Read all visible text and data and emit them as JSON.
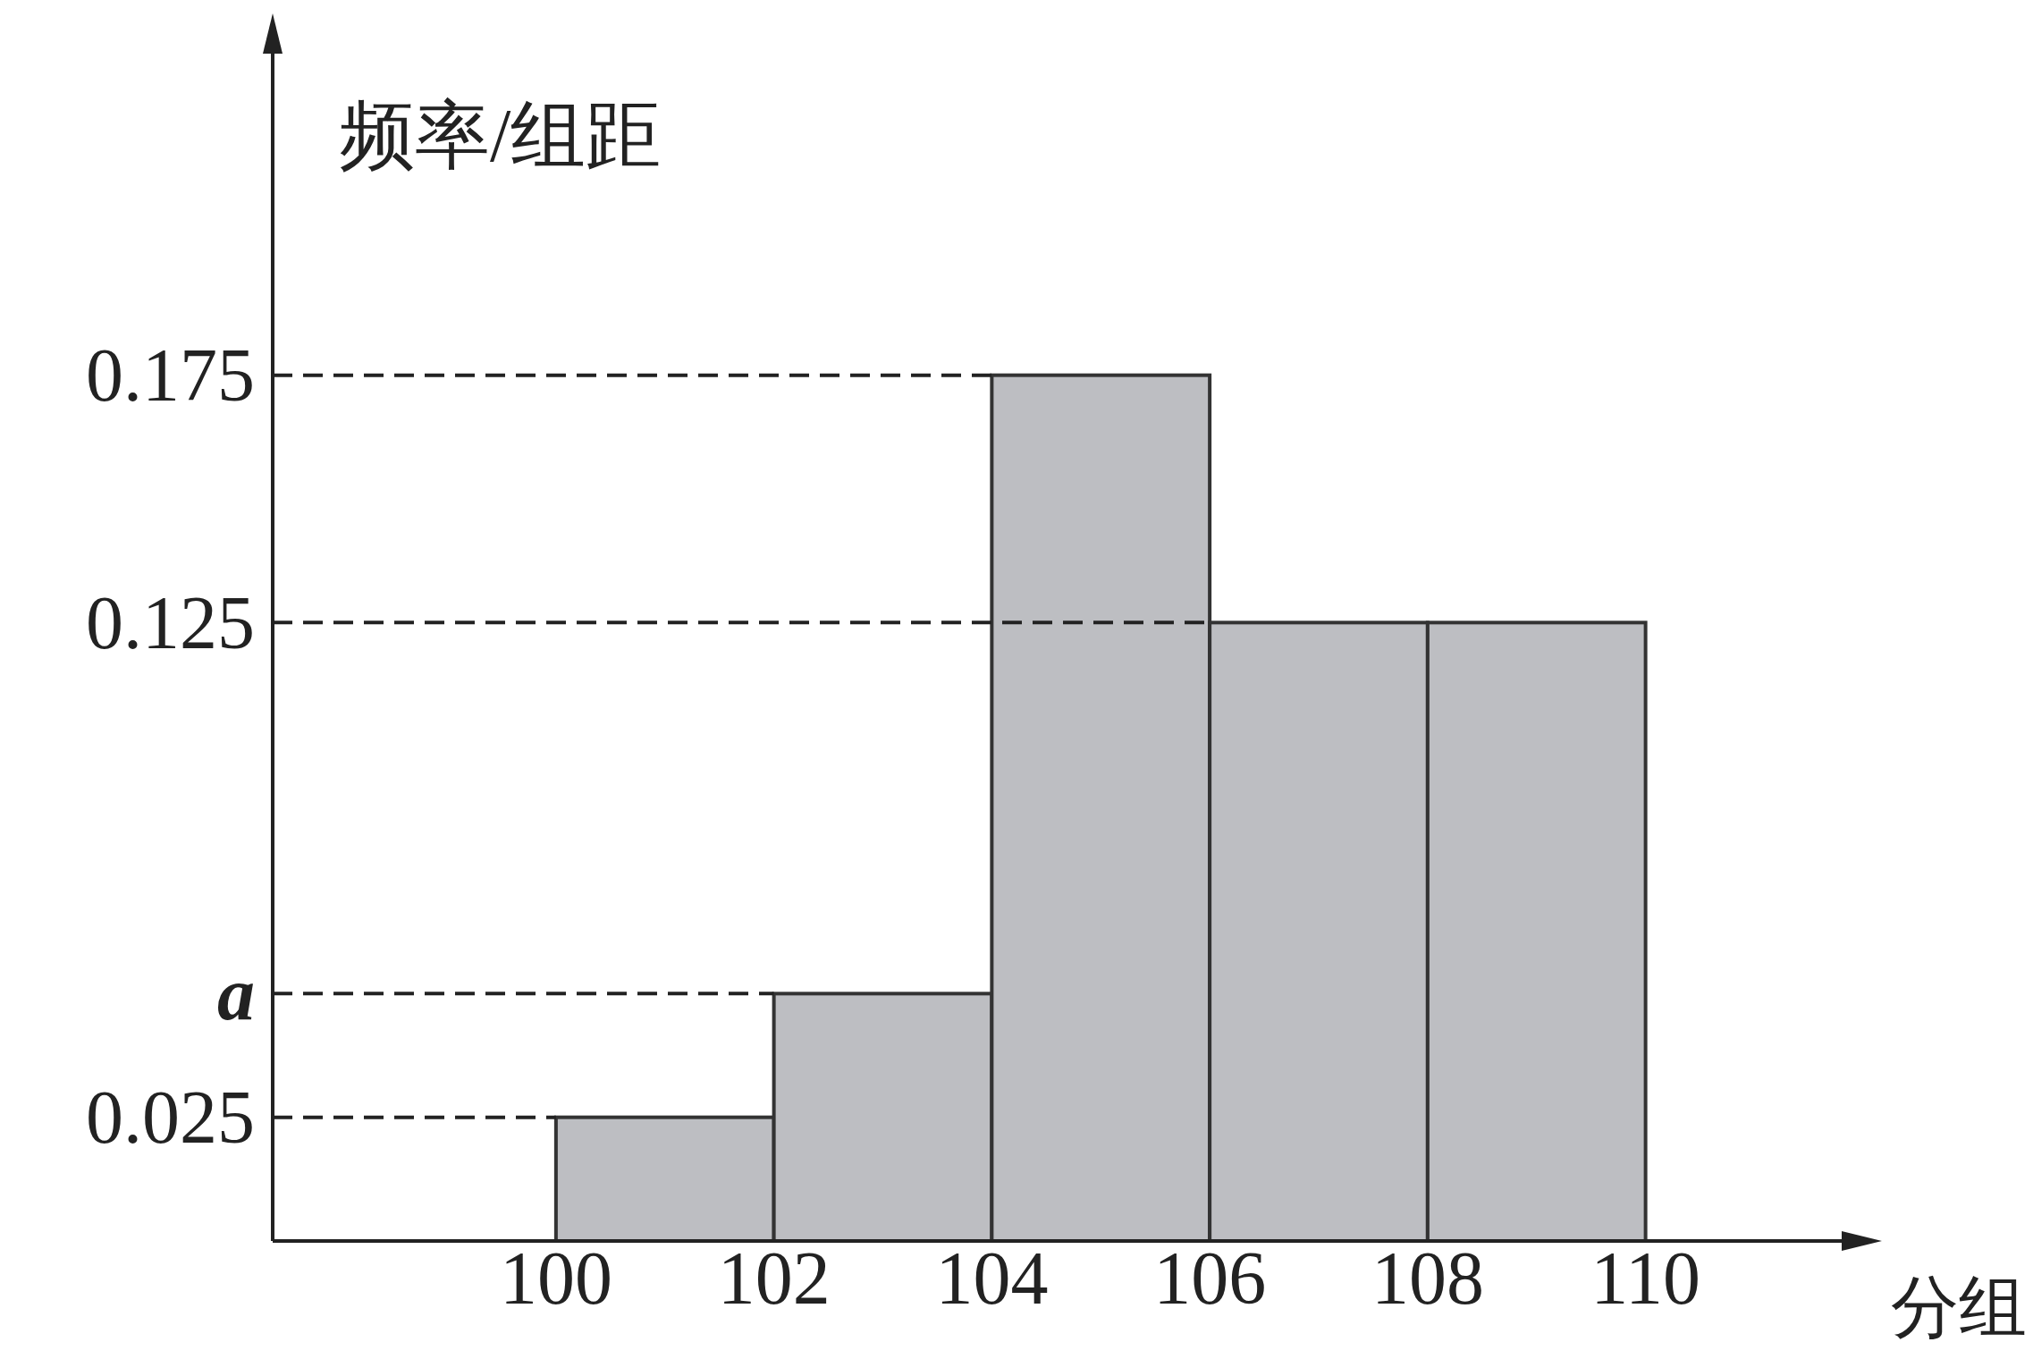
{
  "chart_data": {
    "type": "histogram",
    "xlabel": "分组",
    "ylabel": "频率/组距",
    "bins": [
      100,
      102,
      104,
      106,
      108,
      110
    ],
    "values": [
      0.025,
      0.05,
      0.175,
      0.125,
      0.125
    ],
    "color": "#bdbec2",
    "xlim": [
      97.4,
      111.8
    ],
    "ylim": [
      0,
      0.24
    ],
    "xticks": [
      100,
      102,
      104,
      106,
      108,
      110
    ],
    "yticks": [
      0.025,
      {
        "value": 0.05,
        "label": "a"
      },
      0.125,
      0.175
    ],
    "ref_lines": [
      {
        "axis": "y",
        "value": 0.025,
        "line_style": "dashed"
      },
      {
        "axis": "y",
        "value": 0.05,
        "line_style": "dashed"
      },
      {
        "axis": "y",
        "value": 0.125,
        "line_style": "dashed"
      },
      {
        "axis": "y",
        "value": 0.175,
        "line_style": "dashed"
      }
    ]
  }
}
